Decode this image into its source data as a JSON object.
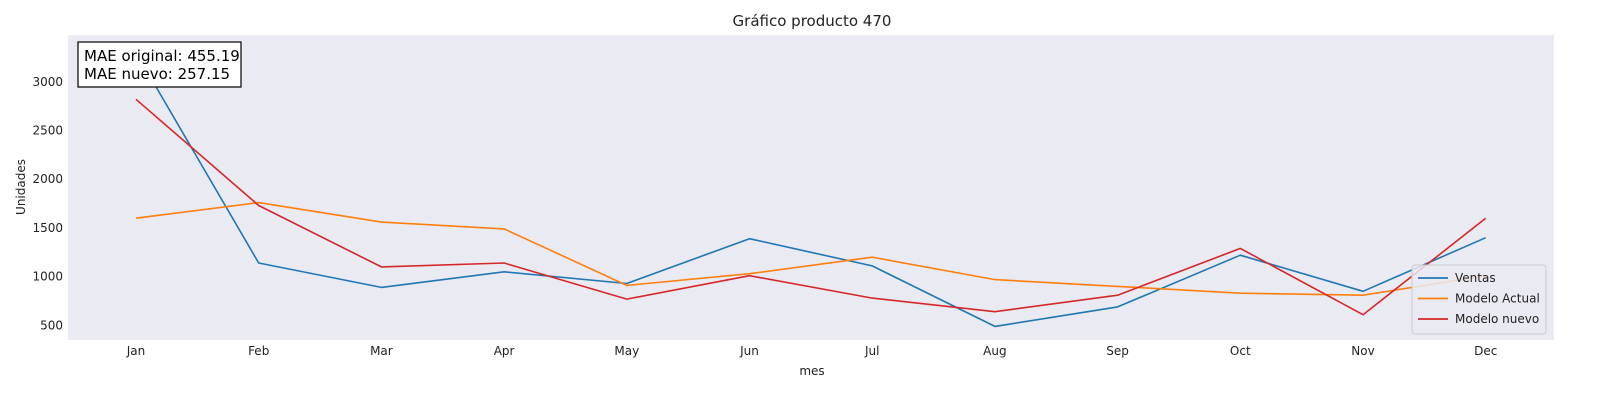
{
  "chart_data": {
    "type": "line",
    "title": "Gráfico producto 470",
    "xlabel": "mes",
    "ylabel": "Unidades",
    "categories": [
      "Jan",
      "Feb",
      "Mar",
      "Apr",
      "May",
      "Jun",
      "Jul",
      "Aug",
      "Sep",
      "Oct",
      "Nov",
      "Dec"
    ],
    "yticks": [
      500,
      1000,
      1500,
      2000,
      2500,
      3000
    ],
    "ylim": [
      350,
      3480
    ],
    "grid": false,
    "background": "#eaeaf2",
    "legend_position": "lower-right",
    "annotation": [
      "MAE original: 455.19",
      "MAE nuevo: 257.15"
    ],
    "series": [
      {
        "name": "Ventas",
        "color": "#1f77b4",
        "values": [
          3300,
          1140,
          890,
          1050,
          930,
          1390,
          1110,
          490,
          690,
          1220,
          850,
          1400
        ]
      },
      {
        "name": "Modelo Actual",
        "color": "#ff7f0e",
        "values": [
          1600,
          1760,
          1560,
          1490,
          910,
          1030,
          1200,
          970,
          900,
          830,
          810,
          1010
        ]
      },
      {
        "name": "Modelo nuevo",
        "color": "#d62728",
        "values": [
          2820,
          1730,
          1100,
          1140,
          770,
          1010,
          780,
          640,
          810,
          1290,
          610,
          1600
        ]
      }
    ]
  }
}
